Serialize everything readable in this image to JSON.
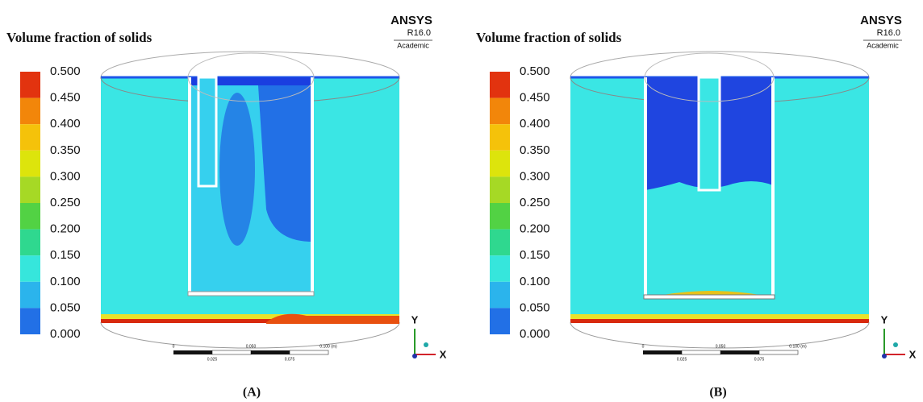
{
  "panels": [
    {
      "title": "Volume fraction of solids",
      "logo": "ANSYS",
      "version": "R16.0",
      "edition": "Academic",
      "legend": [
        "0.500",
        "0.450",
        "0.400",
        "0.350",
        "0.300",
        "0.250",
        "0.200",
        "0.150",
        "0.100",
        "0.050",
        "0.000"
      ],
      "scale": [
        "0",
        "0.050",
        "0.100 (m)",
        "0.025",
        "0.075"
      ],
      "axes": [
        "Y",
        "X"
      ],
      "caption": "(A)"
    },
    {
      "title": "Volume fraction of solids",
      "logo": "ANSYS",
      "version": "R16.0",
      "edition": "Academic",
      "legend": [
        "0.500",
        "0.450",
        "0.400",
        "0.350",
        "0.300",
        "0.250",
        "0.200",
        "0.150",
        "0.100",
        "0.050",
        "0.000"
      ],
      "scale": [
        "0",
        "0.050",
        "0.100 (m)",
        "0.025",
        "0.075"
      ],
      "axes": [
        "Y",
        "X"
      ],
      "caption": "(B)"
    }
  ]
}
